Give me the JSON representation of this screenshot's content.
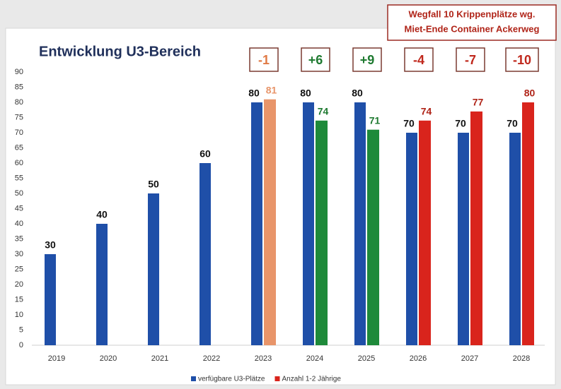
{
  "chart_data": {
    "type": "bar",
    "title": "Entwicklung U3-Bereich",
    "note": [
      "Wegfall 10 Krippenplätze wg.",
      "Miet-Ende Container Ackerweg"
    ],
    "categories": [
      "2019",
      "2020",
      "2021",
      "2022",
      "2023",
      "2024",
      "2025",
      "2026",
      "2027",
      "2028"
    ],
    "series": [
      {
        "name": "verfügbare U3-Plätze",
        "color": "#1f4fa8",
        "label_color": "#111111",
        "values": [
          30,
          40,
          50,
          60,
          80,
          80,
          80,
          70,
          70,
          70
        ]
      },
      {
        "name": "Anzahl 1-2 Jährige",
        "color": "#d9241c",
        "colors": [
          null,
          null,
          null,
          null,
          "#e8956a",
          "#1e8a3a",
          "#1e8a3a",
          "#d9241c",
          "#d9241c",
          "#d9241c"
        ],
        "label_colors": [
          null,
          null,
          null,
          null,
          "#e8956a",
          "#1e7a30",
          "#1e7a30",
          "#b02418",
          "#b02418",
          "#b02418"
        ],
        "values": [
          null,
          null,
          null,
          null,
          81,
          74,
          71,
          74,
          77,
          80
        ]
      }
    ],
    "annotations": [
      {
        "category": "2023",
        "text": "-1",
        "color": "#e07a45"
      },
      {
        "category": "2024",
        "text": "+6",
        "color": "#1e7a30"
      },
      {
        "category": "2025",
        "text": "+9",
        "color": "#1e7a30"
      },
      {
        "category": "2026",
        "text": "-4",
        "color": "#c0281c"
      },
      {
        "category": "2027",
        "text": "-7",
        "color": "#c0281c"
      },
      {
        "category": "2028",
        "text": "-10",
        "color": "#c0281c"
      }
    ],
    "ylim": [
      0,
      90
    ],
    "yticks": [
      0,
      5,
      10,
      15,
      20,
      25,
      30,
      35,
      40,
      45,
      50,
      55,
      60,
      65,
      70,
      75,
      80,
      85,
      90
    ],
    "grid": false,
    "legend": "bottom"
  }
}
